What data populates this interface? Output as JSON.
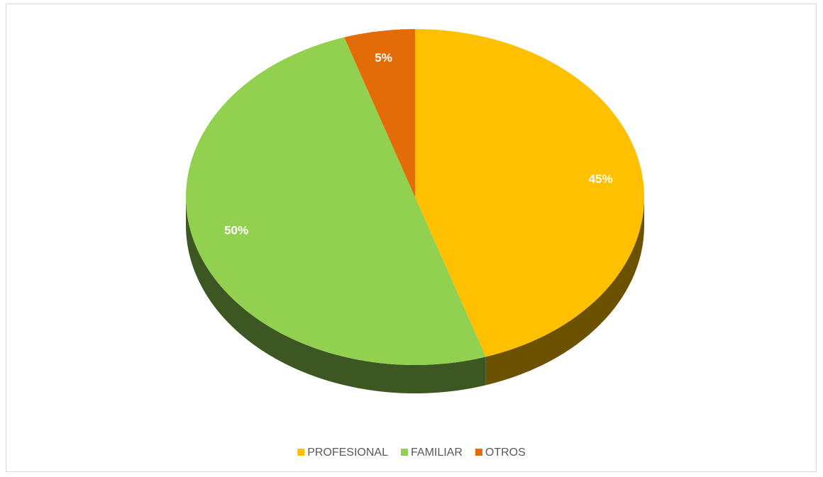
{
  "chart_data": {
    "type": "pie",
    "categories": [
      "PROFESIONAL",
      "FAMILIAR",
      "OTROS"
    ],
    "values": [
      45,
      50,
      5
    ],
    "value_labels": [
      "45%",
      "50%",
      "5%"
    ],
    "colors": [
      "#ffc000",
      "#92d050",
      "#e36c09"
    ],
    "legend": "bottom"
  }
}
